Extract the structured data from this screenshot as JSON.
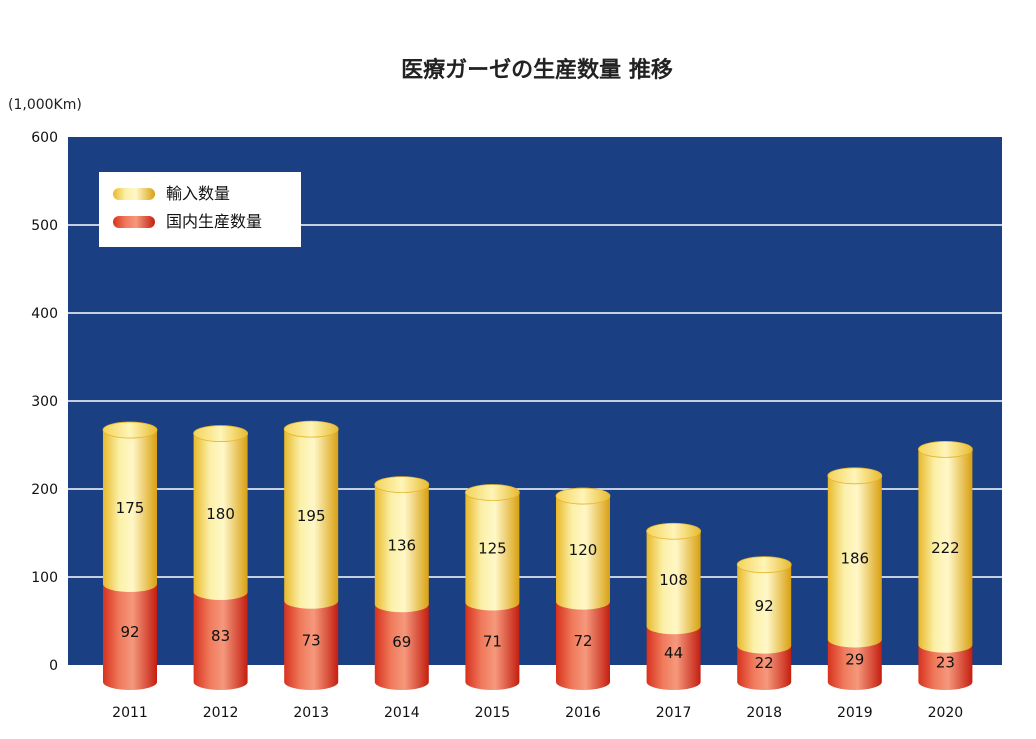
{
  "chart_data": {
    "type": "bar",
    "title": "医療ガーゼの生産数量 推移",
    "unit": "(1,000Km)",
    "categories": [
      "2011",
      "2012",
      "2013",
      "2014",
      "2015",
      "2016",
      "2017",
      "2018",
      "2019",
      "2020"
    ],
    "series": [
      {
        "name": "国内生産数量",
        "values": [
          92,
          83,
          73,
          69,
          71,
          72,
          44,
          22,
          29,
          23
        ]
      },
      {
        "name": "輸入数量",
        "values": [
          175,
          180,
          195,
          136,
          125,
          120,
          108,
          92,
          186,
          222
        ]
      }
    ],
    "stacked": true,
    "ylim": [
      0,
      600
    ],
    "yticks": [
      0,
      100,
      200,
      300,
      400,
      500,
      600
    ],
    "grid": true,
    "legend": "top-left",
    "colors": {
      "background": "#1a3f83",
      "import": "#f0cf48",
      "domestic": "#e0402a"
    }
  }
}
